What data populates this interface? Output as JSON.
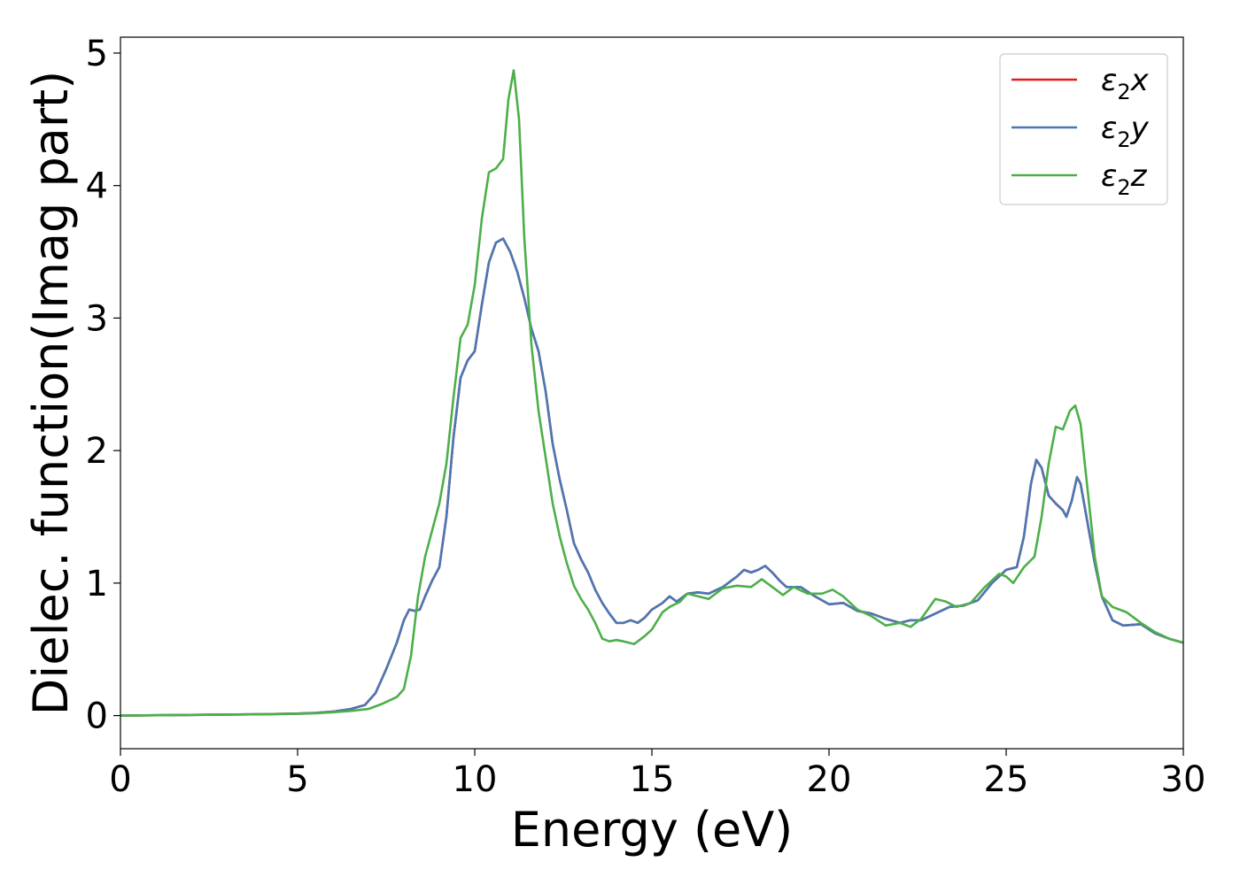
{
  "chart_data": {
    "type": "line",
    "xlabel": "Energy (eV)",
    "ylabel": "Dielec. function(Imag part)",
    "xlim": [
      0,
      30
    ],
    "ylim": [
      -0.25,
      5.12
    ],
    "x_ticks": [
      0,
      5,
      10,
      15,
      20,
      25,
      30
    ],
    "y_ticks": [
      0,
      1,
      2,
      3,
      4,
      5
    ],
    "grid": false,
    "legend_position": "top-right",
    "series": [
      {
        "name": "x",
        "color": "#e41a1c",
        "points": [
          [
            0,
            0.0
          ],
          [
            2,
            0.005
          ],
          [
            4,
            0.01
          ],
          [
            5,
            0.015
          ],
          [
            5.5,
            0.02
          ],
          [
            6,
            0.03
          ],
          [
            6.5,
            0.05
          ],
          [
            6.9,
            0.08
          ],
          [
            7.2,
            0.17
          ],
          [
            7.5,
            0.35
          ],
          [
            7.8,
            0.55
          ],
          [
            8.0,
            0.72
          ],
          [
            8.15,
            0.8
          ],
          [
            8.3,
            0.79
          ],
          [
            8.45,
            0.8
          ],
          [
            8.6,
            0.9
          ],
          [
            8.8,
            1.02
          ],
          [
            9.0,
            1.12
          ],
          [
            9.2,
            1.5
          ],
          [
            9.4,
            2.1
          ],
          [
            9.6,
            2.55
          ],
          [
            9.8,
            2.68
          ],
          [
            10.0,
            2.75
          ],
          [
            10.2,
            3.1
          ],
          [
            10.4,
            3.42
          ],
          [
            10.6,
            3.57
          ],
          [
            10.8,
            3.6
          ],
          [
            11.0,
            3.5
          ],
          [
            11.2,
            3.35
          ],
          [
            11.4,
            3.15
          ],
          [
            11.6,
            2.92
          ],
          [
            11.8,
            2.75
          ],
          [
            12.0,
            2.45
          ],
          [
            12.2,
            2.05
          ],
          [
            12.4,
            1.78
          ],
          [
            12.6,
            1.55
          ],
          [
            12.8,
            1.3
          ],
          [
            13.0,
            1.18
          ],
          [
            13.2,
            1.08
          ],
          [
            13.4,
            0.95
          ],
          [
            13.6,
            0.85
          ],
          [
            13.8,
            0.77
          ],
          [
            14.0,
            0.7
          ],
          [
            14.2,
            0.7
          ],
          [
            14.4,
            0.72
          ],
          [
            14.6,
            0.7
          ],
          [
            14.8,
            0.74
          ],
          [
            15.0,
            0.8
          ],
          [
            15.3,
            0.85
          ],
          [
            15.5,
            0.9
          ],
          [
            15.7,
            0.86
          ],
          [
            16.0,
            0.92
          ],
          [
            16.3,
            0.93
          ],
          [
            16.6,
            0.92
          ],
          [
            17.0,
            0.97
          ],
          [
            17.4,
            1.05
          ],
          [
            17.6,
            1.1
          ],
          [
            17.8,
            1.08
          ],
          [
            18.0,
            1.1
          ],
          [
            18.2,
            1.13
          ],
          [
            18.4,
            1.08
          ],
          [
            18.6,
            1.02
          ],
          [
            18.8,
            0.97
          ],
          [
            19.2,
            0.97
          ],
          [
            19.6,
            0.9
          ],
          [
            20.0,
            0.84
          ],
          [
            20.4,
            0.85
          ],
          [
            20.8,
            0.79
          ],
          [
            21.2,
            0.77
          ],
          [
            21.6,
            0.73
          ],
          [
            22.0,
            0.7
          ],
          [
            22.3,
            0.72
          ],
          [
            22.6,
            0.72
          ],
          [
            23.0,
            0.77
          ],
          [
            23.4,
            0.82
          ],
          [
            23.8,
            0.83
          ],
          [
            24.2,
            0.87
          ],
          [
            24.6,
            1.0
          ],
          [
            25.0,
            1.1
          ],
          [
            25.3,
            1.12
          ],
          [
            25.5,
            1.35
          ],
          [
            25.7,
            1.75
          ],
          [
            25.85,
            1.93
          ],
          [
            26.0,
            1.87
          ],
          [
            26.2,
            1.66
          ],
          [
            26.4,
            1.6
          ],
          [
            26.6,
            1.55
          ],
          [
            26.7,
            1.5
          ],
          [
            26.85,
            1.62
          ],
          [
            27.0,
            1.8
          ],
          [
            27.1,
            1.75
          ],
          [
            27.3,
            1.45
          ],
          [
            27.5,
            1.15
          ],
          [
            27.7,
            0.9
          ],
          [
            28.0,
            0.72
          ],
          [
            28.3,
            0.68
          ],
          [
            28.8,
            0.69
          ],
          [
            29.2,
            0.62
          ],
          [
            29.6,
            0.58
          ],
          [
            30.0,
            0.55
          ]
        ]
      },
      {
        "name": "y",
        "color": "#4a78b4",
        "points": [
          [
            0,
            0.0
          ],
          [
            2,
            0.005
          ],
          [
            4,
            0.01
          ],
          [
            5,
            0.015
          ],
          [
            5.5,
            0.02
          ],
          [
            6,
            0.03
          ],
          [
            6.5,
            0.05
          ],
          [
            6.9,
            0.08
          ],
          [
            7.2,
            0.17
          ],
          [
            7.5,
            0.35
          ],
          [
            7.8,
            0.55
          ],
          [
            8.0,
            0.72
          ],
          [
            8.15,
            0.8
          ],
          [
            8.3,
            0.79
          ],
          [
            8.45,
            0.8
          ],
          [
            8.6,
            0.9
          ],
          [
            8.8,
            1.02
          ],
          [
            9.0,
            1.12
          ],
          [
            9.2,
            1.5
          ],
          [
            9.4,
            2.1
          ],
          [
            9.6,
            2.55
          ],
          [
            9.8,
            2.68
          ],
          [
            10.0,
            2.75
          ],
          [
            10.2,
            3.1
          ],
          [
            10.4,
            3.42
          ],
          [
            10.6,
            3.57
          ],
          [
            10.8,
            3.6
          ],
          [
            11.0,
            3.5
          ],
          [
            11.2,
            3.35
          ],
          [
            11.4,
            3.15
          ],
          [
            11.6,
            2.92
          ],
          [
            11.8,
            2.75
          ],
          [
            12.0,
            2.45
          ],
          [
            12.2,
            2.05
          ],
          [
            12.4,
            1.78
          ],
          [
            12.6,
            1.55
          ],
          [
            12.8,
            1.3
          ],
          [
            13.0,
            1.18
          ],
          [
            13.2,
            1.08
          ],
          [
            13.4,
            0.95
          ],
          [
            13.6,
            0.85
          ],
          [
            13.8,
            0.77
          ],
          [
            14.0,
            0.7
          ],
          [
            14.2,
            0.7
          ],
          [
            14.4,
            0.72
          ],
          [
            14.6,
            0.7
          ],
          [
            14.8,
            0.74
          ],
          [
            15.0,
            0.8
          ],
          [
            15.3,
            0.85
          ],
          [
            15.5,
            0.9
          ],
          [
            15.7,
            0.86
          ],
          [
            16.0,
            0.92
          ],
          [
            16.3,
            0.93
          ],
          [
            16.6,
            0.92
          ],
          [
            17.0,
            0.97
          ],
          [
            17.4,
            1.05
          ],
          [
            17.6,
            1.1
          ],
          [
            17.8,
            1.08
          ],
          [
            18.0,
            1.1
          ],
          [
            18.2,
            1.13
          ],
          [
            18.4,
            1.08
          ],
          [
            18.6,
            1.02
          ],
          [
            18.8,
            0.97
          ],
          [
            19.2,
            0.97
          ],
          [
            19.6,
            0.9
          ],
          [
            20.0,
            0.84
          ],
          [
            20.4,
            0.85
          ],
          [
            20.8,
            0.79
          ],
          [
            21.2,
            0.77
          ],
          [
            21.6,
            0.73
          ],
          [
            22.0,
            0.7
          ],
          [
            22.3,
            0.72
          ],
          [
            22.6,
            0.72
          ],
          [
            23.0,
            0.77
          ],
          [
            23.4,
            0.82
          ],
          [
            23.8,
            0.83
          ],
          [
            24.2,
            0.87
          ],
          [
            24.6,
            1.0
          ],
          [
            25.0,
            1.1
          ],
          [
            25.3,
            1.12
          ],
          [
            25.5,
            1.35
          ],
          [
            25.7,
            1.75
          ],
          [
            25.85,
            1.93
          ],
          [
            26.0,
            1.87
          ],
          [
            26.2,
            1.66
          ],
          [
            26.4,
            1.6
          ],
          [
            26.6,
            1.55
          ],
          [
            26.7,
            1.5
          ],
          [
            26.85,
            1.62
          ],
          [
            27.0,
            1.8
          ],
          [
            27.1,
            1.75
          ],
          [
            27.3,
            1.45
          ],
          [
            27.5,
            1.15
          ],
          [
            27.7,
            0.9
          ],
          [
            28.0,
            0.72
          ],
          [
            28.3,
            0.68
          ],
          [
            28.8,
            0.69
          ],
          [
            29.2,
            0.62
          ],
          [
            29.6,
            0.58
          ],
          [
            30.0,
            0.55
          ]
        ]
      },
      {
        "name": "z",
        "color": "#4daf4a",
        "points": [
          [
            0,
            0.0
          ],
          [
            2,
            0.005
          ],
          [
            4,
            0.01
          ],
          [
            5,
            0.013
          ],
          [
            5.5,
            0.017
          ],
          [
            6,
            0.025
          ],
          [
            6.5,
            0.035
          ],
          [
            7.0,
            0.05
          ],
          [
            7.4,
            0.09
          ],
          [
            7.8,
            0.14
          ],
          [
            8.0,
            0.2
          ],
          [
            8.2,
            0.45
          ],
          [
            8.4,
            0.9
          ],
          [
            8.6,
            1.2
          ],
          [
            8.8,
            1.4
          ],
          [
            9.0,
            1.6
          ],
          [
            9.2,
            1.9
          ],
          [
            9.4,
            2.4
          ],
          [
            9.6,
            2.85
          ],
          [
            9.8,
            2.95
          ],
          [
            10.0,
            3.25
          ],
          [
            10.2,
            3.75
          ],
          [
            10.4,
            4.1
          ],
          [
            10.6,
            4.13
          ],
          [
            10.8,
            4.2
          ],
          [
            10.95,
            4.65
          ],
          [
            11.1,
            4.87
          ],
          [
            11.25,
            4.5
          ],
          [
            11.4,
            3.6
          ],
          [
            11.6,
            2.8
          ],
          [
            11.8,
            2.3
          ],
          [
            12.0,
            1.95
          ],
          [
            12.2,
            1.6
          ],
          [
            12.4,
            1.35
          ],
          [
            12.6,
            1.15
          ],
          [
            12.8,
            0.98
          ],
          [
            13.0,
            0.88
          ],
          [
            13.2,
            0.8
          ],
          [
            13.4,
            0.7
          ],
          [
            13.6,
            0.58
          ],
          [
            13.8,
            0.56
          ],
          [
            14.0,
            0.57
          ],
          [
            14.2,
            0.56
          ],
          [
            14.5,
            0.54
          ],
          [
            14.8,
            0.6
          ],
          [
            15.0,
            0.65
          ],
          [
            15.3,
            0.78
          ],
          [
            15.5,
            0.82
          ],
          [
            15.8,
            0.86
          ],
          [
            16.0,
            0.92
          ],
          [
            16.3,
            0.9
          ],
          [
            16.6,
            0.88
          ],
          [
            17.0,
            0.96
          ],
          [
            17.4,
            0.98
          ],
          [
            17.8,
            0.97
          ],
          [
            18.1,
            1.03
          ],
          [
            18.4,
            0.97
          ],
          [
            18.7,
            0.91
          ],
          [
            19.0,
            0.97
          ],
          [
            19.4,
            0.92
          ],
          [
            19.8,
            0.92
          ],
          [
            20.1,
            0.95
          ],
          [
            20.4,
            0.9
          ],
          [
            20.8,
            0.8
          ],
          [
            21.2,
            0.75
          ],
          [
            21.6,
            0.68
          ],
          [
            22.0,
            0.7
          ],
          [
            22.3,
            0.67
          ],
          [
            22.6,
            0.73
          ],
          [
            23.0,
            0.88
          ],
          [
            23.3,
            0.86
          ],
          [
            23.6,
            0.82
          ],
          [
            24.0,
            0.85
          ],
          [
            24.4,
            0.97
          ],
          [
            24.8,
            1.07
          ],
          [
            25.0,
            1.05
          ],
          [
            25.2,
            1.0
          ],
          [
            25.5,
            1.12
          ],
          [
            25.8,
            1.2
          ],
          [
            26.0,
            1.5
          ],
          [
            26.2,
            1.9
          ],
          [
            26.4,
            2.18
          ],
          [
            26.6,
            2.16
          ],
          [
            26.8,
            2.3
          ],
          [
            26.95,
            2.34
          ],
          [
            27.1,
            2.2
          ],
          [
            27.3,
            1.7
          ],
          [
            27.5,
            1.2
          ],
          [
            27.7,
            0.9
          ],
          [
            28.0,
            0.82
          ],
          [
            28.4,
            0.78
          ],
          [
            28.8,
            0.7
          ],
          [
            29.2,
            0.63
          ],
          [
            29.6,
            0.58
          ],
          [
            30.0,
            0.55
          ]
        ]
      }
    ]
  }
}
